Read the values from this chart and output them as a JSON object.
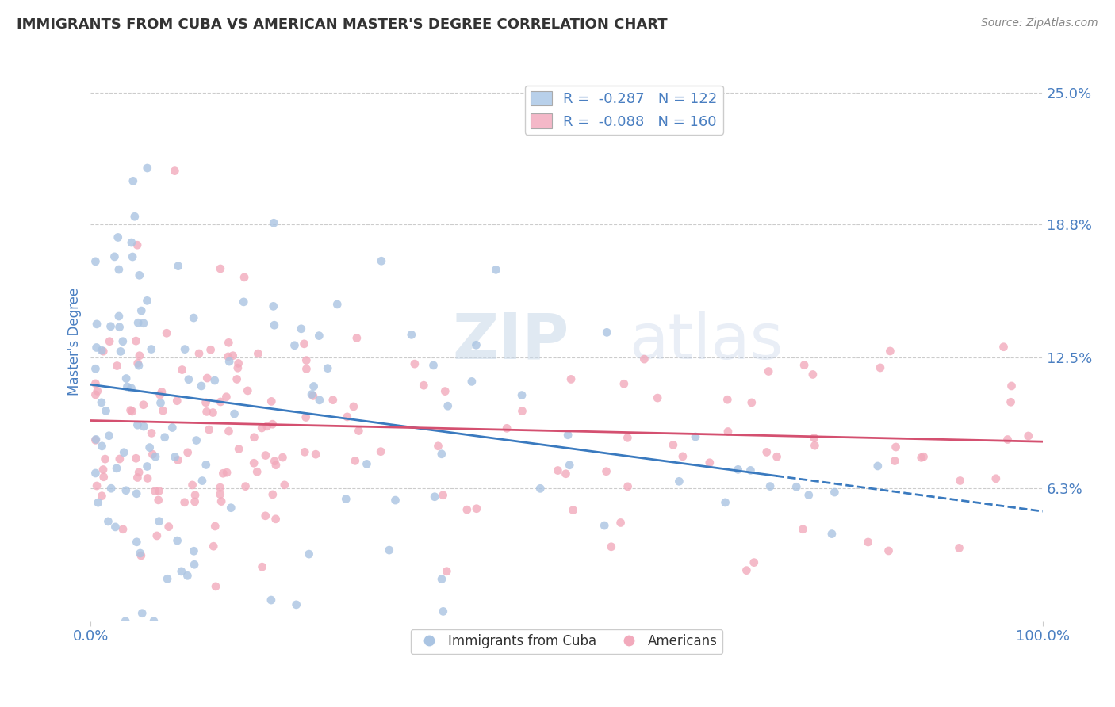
{
  "title": "IMMIGRANTS FROM CUBA VS AMERICAN MASTER'S DEGREE CORRELATION CHART",
  "source_text": "Source: ZipAtlas.com",
  "ylabel": "Master's Degree",
  "watermark_zip": "ZIP",
  "watermark_atlas": "atlas",
  "legend_entries": [
    {
      "label": "R =  -0.287   N = 122",
      "color": "#b8d0ea"
    },
    {
      "label": "R =  -0.088   N = 160",
      "color": "#f4b8c8"
    }
  ],
  "legend_bottom": [
    "Immigrants from Cuba",
    "Americans"
  ],
  "blue_scatter_color": "#aac4e2",
  "pink_scatter_color": "#f2aabc",
  "blue_line_color": "#3a7abf",
  "pink_line_color": "#d45070",
  "xlim": [
    0,
    100
  ],
  "ylim": [
    0,
    26.5
  ],
  "ytick_vals": [
    0,
    6.3,
    12.5,
    18.8,
    25.0
  ],
  "ytick_labels": [
    "",
    "6.3%",
    "12.5%",
    "18.8%",
    "25.0%"
  ],
  "xtick_vals": [
    0,
    100
  ],
  "xtick_labels": [
    "0.0%",
    "100.0%"
  ],
  "grid_color": "#cccccc",
  "background_color": "#ffffff",
  "title_color": "#333333",
  "tick_color": "#4a7fc1",
  "blue_line_x0": 0,
  "blue_line_y0": 11.2,
  "blue_line_x1": 100,
  "blue_line_y1": 5.2,
  "blue_dash_from": 72,
  "pink_line_x0": 0,
  "pink_line_y0": 9.5,
  "pink_line_x1": 100,
  "pink_line_y1": 8.5
}
